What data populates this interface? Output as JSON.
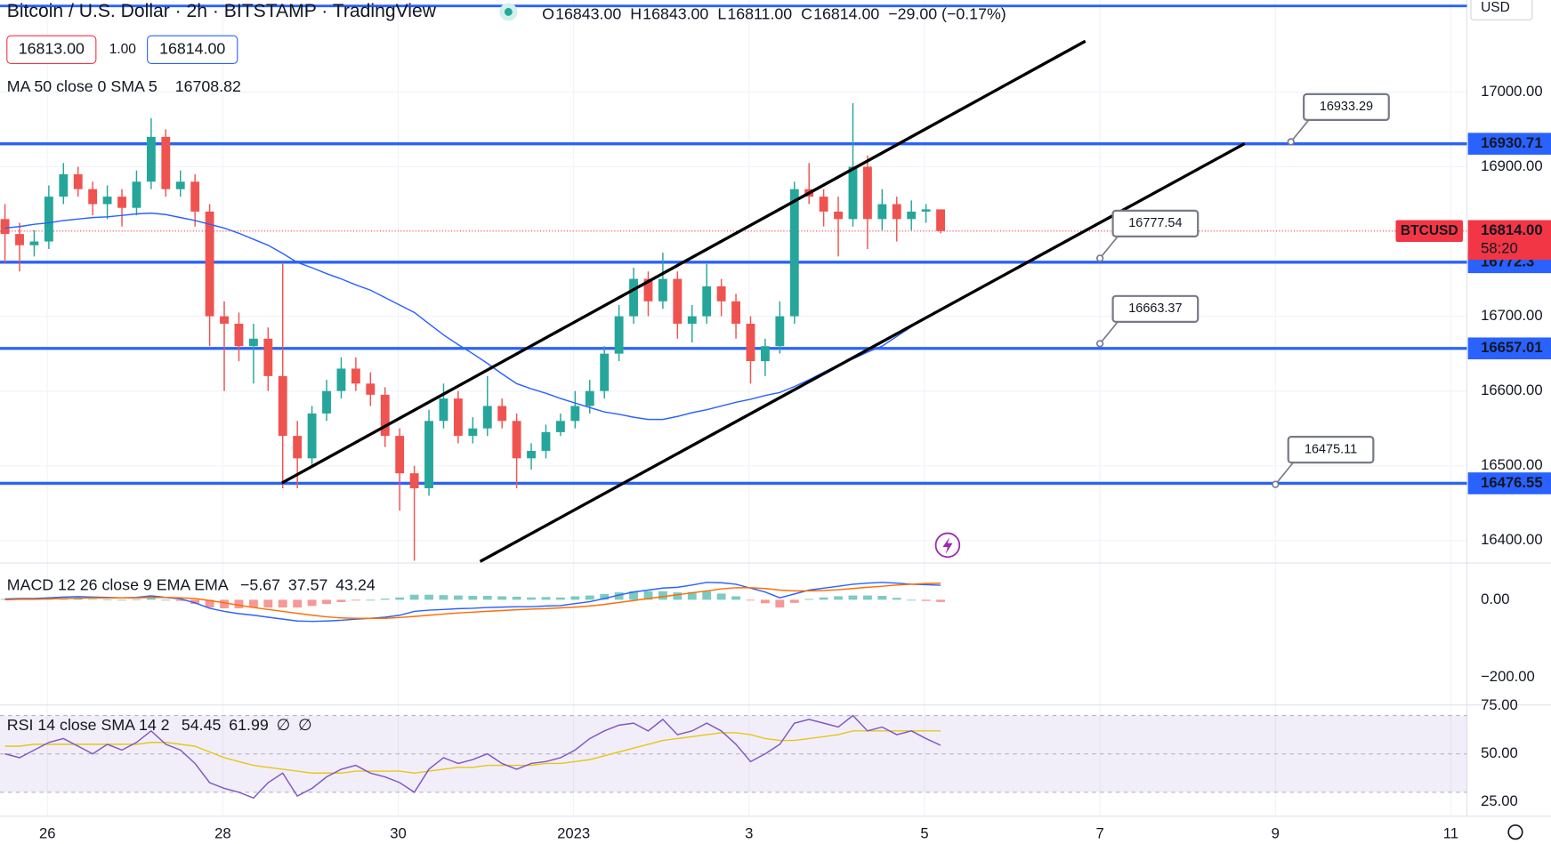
{
  "header": {
    "title": "Bitcoin / U.S. Dollar · 2h · BITSTAMP · TradingView",
    "ohlc": [
      {
        "letter": "O",
        "value": "16843.00"
      },
      {
        "letter": "H",
        "value": "16843.00"
      },
      {
        "letter": "L",
        "value": "16811.00"
      },
      {
        "letter": "C",
        "value": "16814.00"
      }
    ],
    "change": "−29.00 (−0.17%)",
    "bid": "16813.00",
    "spread": "1.00",
    "ask": "16814.00"
  },
  "chart_data": {
    "type": "candlestick",
    "currency": "USD",
    "up_color": "#26a69a",
    "down_color": "#ef5350",
    "xlim": [
      -0.34,
      100.0
    ],
    "xticks": [
      {
        "value": 2.9,
        "label": "26"
      },
      {
        "value": 14.9,
        "label": "28"
      },
      {
        "value": 26.9,
        "label": "30"
      },
      {
        "value": 38.9,
        "label": "2023"
      },
      {
        "value": 50.9,
        "label": "3"
      },
      {
        "value": 62.9,
        "label": "5"
      },
      {
        "value": 74.9,
        "label": "7"
      },
      {
        "value": 86.9,
        "label": "9"
      },
      {
        "value": 98.9,
        "label": "11"
      }
    ],
    "ylim": [
      16370,
      17123
    ],
    "yticks": [
      {
        "value": 17000,
        "label": "17000.00"
      },
      {
        "value": 16900,
        "label": "16900.00"
      },
      {
        "value": 16700,
        "label": "16700.00"
      },
      {
        "value": 16600,
        "label": "16600.00"
      },
      {
        "value": 16500,
        "label": "16500.00"
      },
      {
        "value": 16400,
        "label": "16400.00"
      }
    ],
    "grid": true,
    "candles": [
      [
        16830,
        16850,
        16770,
        16810
      ],
      [
        16810,
        16825,
        16760,
        16795
      ],
      [
        16795,
        16815,
        16780,
        16800
      ],
      [
        16800,
        16875,
        16790,
        16860
      ],
      [
        16860,
        16905,
        16850,
        16890
      ],
      [
        16890,
        16900,
        16860,
        16870
      ],
      [
        16870,
        16880,
        16835,
        16850
      ],
      [
        16850,
        16875,
        16830,
        16860
      ],
      [
        16860,
        16870,
        16820,
        16845
      ],
      [
        16845,
        16895,
        16835,
        16880
      ],
      [
        16880,
        16965,
        16870,
        16940
      ],
      [
        16940,
        16950,
        16860,
        16870
      ],
      [
        16870,
        16895,
        16860,
        16880
      ],
      [
        16880,
        16890,
        16820,
        16840
      ],
      [
        16840,
        16850,
        16660,
        16700
      ],
      [
        16700,
        16720,
        16600,
        16690
      ],
      [
        16690,
        16705,
        16640,
        16660
      ],
      [
        16660,
        16690,
        16610,
        16670
      ],
      [
        16670,
        16685,
        16600,
        16620
      ],
      [
        16620,
        16770,
        16470,
        16540
      ],
      [
        16540,
        16560,
        16470,
        16510
      ],
      [
        16510,
        16580,
        16500,
        16570
      ],
      [
        16570,
        16615,
        16560,
        16600
      ],
      [
        16600,
        16645,
        16590,
        16630
      ],
      [
        16630,
        16645,
        16600,
        16610
      ],
      [
        16610,
        16625,
        16580,
        16595
      ],
      [
        16595,
        16605,
        16525,
        16540
      ],
      [
        16540,
        16550,
        16440,
        16490
      ],
      [
        16490,
        16500,
        16373,
        16470
      ],
      [
        16470,
        16575,
        16460,
        16560
      ],
      [
        16560,
        16610,
        16550,
        16590
      ],
      [
        16590,
        16600,
        16530,
        16540
      ],
      [
        16540,
        16565,
        16530,
        16550
      ],
      [
        16550,
        16620,
        16540,
        16580
      ],
      [
        16580,
        16590,
        16550,
        16560
      ],
      [
        16560,
        16570,
        16470,
        16510
      ],
      [
        16510,
        16530,
        16495,
        16520
      ],
      [
        16520,
        16555,
        16510,
        16545
      ],
      [
        16545,
        16570,
        16540,
        16560
      ],
      [
        16560,
        16600,
        16550,
        16580
      ],
      [
        16580,
        16615,
        16570,
        16600
      ],
      [
        16600,
        16660,
        16590,
        16650
      ],
      [
        16650,
        16715,
        16640,
        16700
      ],
      [
        16700,
        16765,
        16690,
        16750
      ],
      [
        16750,
        16760,
        16700,
        16720
      ],
      [
        16720,
        16785,
        16710,
        16750
      ],
      [
        16750,
        16760,
        16670,
        16690
      ],
      [
        16690,
        16715,
        16665,
        16700
      ],
      [
        16700,
        16770,
        16690,
        16740
      ],
      [
        16740,
        16750,
        16700,
        16720
      ],
      [
        16720,
        16730,
        16670,
        16690
      ],
      [
        16690,
        16700,
        16610,
        16640
      ],
      [
        16640,
        16670,
        16620,
        16660
      ],
      [
        16660,
        16720,
        16650,
        16700
      ],
      [
        16700,
        16880,
        16690,
        16870
      ],
      [
        16870,
        16905,
        16850,
        16860
      ],
      [
        16860,
        16870,
        16820,
        16840
      ],
      [
        16840,
        16860,
        16780,
        16830
      ],
      [
        16830,
        16985,
        16820,
        16900
      ],
      [
        16900,
        16915,
        16790,
        16830
      ],
      [
        16830,
        16870,
        16815,
        16850
      ],
      [
        16850,
        16860,
        16800,
        16830
      ],
      [
        16830,
        16855,
        16815,
        16840
      ],
      [
        16840,
        16850,
        16825,
        16843
      ],
      [
        16843,
        16843,
        16811,
        16814
      ]
    ],
    "ma": {
      "name": "MA 50 close 0 SMA 5",
      "value_label": "16708.82",
      "color": "#2962ff",
      "values": [
        16818,
        16820,
        16823,
        16825,
        16828,
        16830,
        16832,
        16833,
        16835,
        16837,
        16838,
        16836,
        16832,
        16828,
        16823,
        16818,
        16811,
        16803,
        16795,
        16784,
        16772,
        16765,
        16757,
        16750,
        16742,
        16735,
        16725,
        16715,
        16705,
        16690,
        16675,
        16662,
        16650,
        16637,
        16623,
        16610,
        16603,
        16597,
        16590,
        16584,
        16578,
        16572,
        16569,
        16565,
        16562,
        16562,
        16566,
        16571,
        16575,
        16580,
        16585,
        16589,
        16594,
        16598,
        16606,
        16615,
        16625,
        16635,
        16643,
        16652,
        16660,
        16673,
        16686,
        16699,
        16708.82
      ]
    },
    "levels": [
      16930.71,
      16772.3,
      16657.01,
      16476.55
    ],
    "level_color": "#2962ff",
    "trendlines": [
      {
        "x": [
          18.94,
          73.9
        ],
        "y": [
          16477,
          17068
        ]
      },
      {
        "x": [
          32.5,
          84.8
        ],
        "y": [
          16372,
          16931
        ]
      }
    ],
    "callouts": [
      {
        "value": 16933.29,
        "x": 87.96
      },
      {
        "value": 16777.54,
        "x": 74.9
      },
      {
        "value": 16663.37,
        "x": 74.9
      },
      {
        "value": 16475.11,
        "x": 86.9
      }
    ],
    "last": {
      "name": "BTCUSD",
      "value": 16814,
      "label": "16814.00",
      "countdown": "58:20"
    },
    "macd": {
      "title": "MACD 12 26 close 9 EMA EMA",
      "ylim": [
        -272,
        95
      ],
      "yticks": [
        {
          "value": 0,
          "label": "0.00"
        },
        {
          "value": -200,
          "label": "−200.00"
        }
      ],
      "histogram": {
        "label": "−5.67",
        "color": "#ef5350",
        "up_color": "#26a69a",
        "values": [
          2,
          2,
          2,
          3,
          4,
          4,
          2,
          1,
          0,
          1,
          4,
          0,
          -3,
          -11,
          -20,
          -22,
          -22,
          -20,
          -20,
          -20,
          -20,
          -16,
          -11,
          -6,
          -2,
          0,
          3,
          6,
          13,
          13,
          12,
          11,
          10,
          10,
          9,
          8,
          6,
          7,
          6,
          9,
          11,
          15,
          19,
          22,
          22,
          22,
          19,
          20,
          22,
          16,
          9,
          -1,
          -9,
          -20,
          -8,
          2,
          6,
          9,
          11,
          11,
          10,
          5,
          0,
          -3,
          -5.67
        ]
      },
      "macd_line": {
        "label": "37.57",
        "color": "#2962ff",
        "values": [
          2,
          3,
          3,
          5,
          7,
          8,
          7,
          6,
          5,
          6,
          10,
          6,
          2,
          -8,
          -22,
          -30,
          -36,
          -40,
          -45,
          -50,
          -55,
          -56,
          -55,
          -53,
          -50,
          -48,
          -45,
          -40,
          -30,
          -27,
          -25,
          -23,
          -22,
          -20,
          -19,
          -18,
          -18,
          -16,
          -15,
          -10,
          -5,
          3,
          12,
          20,
          25,
          30,
          32,
          38,
          45,
          44,
          40,
          30,
          20,
          5,
          15,
          25,
          30,
          35,
          40,
          43,
          45,
          43,
          40,
          39,
          37.57
        ]
      },
      "signal_line": {
        "label": "43.24",
        "color": "#ff6d00",
        "values": [
          0,
          1,
          1,
          2,
          3,
          4,
          5,
          5,
          5,
          5,
          6,
          6,
          5,
          3,
          -2,
          -8,
          -14,
          -20,
          -25,
          -30,
          -35,
          -40,
          -44,
          -47,
          -48,
          -48,
          -48,
          -46,
          -43,
          -40,
          -37,
          -34,
          -32,
          -30,
          -28,
          -26,
          -24,
          -23,
          -21,
          -19,
          -16,
          -12,
          -7,
          -2,
          3,
          8,
          13,
          18,
          23,
          28,
          31,
          31,
          29,
          25,
          23,
          23,
          24,
          26,
          29,
          32,
          35,
          38,
          40,
          42,
          43.24
        ]
      }
    },
    "rsi": {
      "title": "RSI 14 close SMA 14 2",
      "ylim": [
        17.5,
        75.5
      ],
      "yticks": [
        {
          "value": 75,
          "label": "75.00"
        },
        {
          "value": 50,
          "label": "50.00"
        },
        {
          "value": 25,
          "label": "25.00"
        }
      ],
      "bands": [
        30,
        50,
        70
      ],
      "rsi_line": {
        "label": "54.45",
        "color": "#7e57c2",
        "values": [
          50,
          48,
          52,
          56,
          58,
          54,
          50,
          55,
          52,
          56,
          62,
          55,
          52,
          45,
          35,
          32,
          30,
          27,
          35,
          40,
          28,
          32,
          38,
          42,
          44,
          40,
          38,
          35,
          30,
          42,
          48,
          45,
          47,
          50,
          45,
          42,
          45,
          46,
          48,
          52,
          58,
          62,
          65,
          66,
          62,
          68,
          60,
          62,
          66,
          62,
          55,
          46,
          50,
          55,
          66,
          68,
          66,
          64,
          70,
          62,
          64,
          60,
          62,
          58,
          54.45
        ]
      },
      "rsi_ma": {
        "label": "61.99",
        "color": "#e6c619",
        "values": [
          54,
          54,
          55,
          55,
          55,
          55,
          55,
          55,
          55,
          55,
          56,
          56,
          55,
          54,
          51,
          48,
          46,
          44,
          43,
          42,
          41,
          40,
          40,
          40,
          41,
          41,
          41,
          41,
          40,
          41,
          42,
          43,
          43,
          44,
          44,
          44,
          44,
          45,
          45,
          46,
          47,
          49,
          51,
          53,
          55,
          57,
          58,
          59,
          60,
          61,
          61,
          60,
          58,
          57,
          57,
          58,
          59,
          60,
          62,
          62,
          62,
          62,
          62,
          62,
          61.99
        ]
      },
      "extra_labels": [
        "∅",
        "∅"
      ]
    }
  }
}
